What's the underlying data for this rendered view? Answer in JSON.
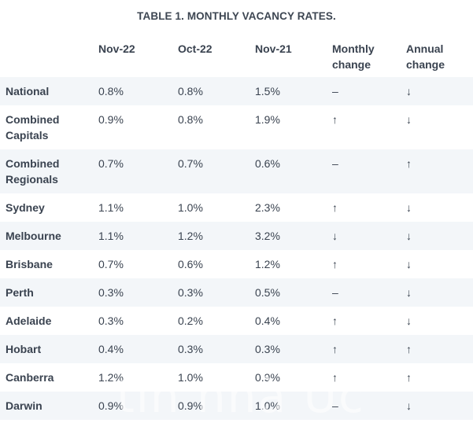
{
  "title": "TABLE 1. MONTHLY VACANCY RATES.",
  "headers": [
    "",
    "Nov-22",
    "Oct-22",
    "Nov-21",
    "Monthly change",
    "Annual change"
  ],
  "rows": [
    {
      "city": "National",
      "nov22": "0.8%",
      "oct22": "0.8%",
      "nov21": "1.5%",
      "monthly": "–",
      "annual": "↓"
    },
    {
      "city": "Combined Capitals",
      "nov22": "0.9%",
      "oct22": "0.8%",
      "nov21": "1.9%",
      "monthly": "↑",
      "annual": "↓"
    },
    {
      "city": "Combined Regionals",
      "nov22": "0.7%",
      "oct22": "0.7%",
      "nov21": "0.6%",
      "monthly": "–",
      "annual": "↑"
    },
    {
      "city": "Sydney",
      "nov22": "1.1%",
      "oct22": "1.0%",
      "nov21": "2.3%",
      "monthly": "↑",
      "annual": "↓"
    },
    {
      "city": "Melbourne",
      "nov22": "1.1%",
      "oct22": "1.2%",
      "nov21": "3.2%",
      "monthly": "↓",
      "annual": "↓"
    },
    {
      "city": "Brisbane",
      "nov22": "0.7%",
      "oct22": "0.6%",
      "nov21": "1.2%",
      "monthly": "↑",
      "annual": "↓"
    },
    {
      "city": "Perth",
      "nov22": "0.3%",
      "oct22": "0.3%",
      "nov21": "0.5%",
      "monthly": "–",
      "annual": "↓"
    },
    {
      "city": "Adelaide",
      "nov22": "0.3%",
      "oct22": "0.2%",
      "nov21": "0.4%",
      "monthly": "↑",
      "annual": "↓"
    },
    {
      "city": "Hobart",
      "nov22": "0.4%",
      "oct22": "0.3%",
      "nov21": "0.3%",
      "monthly": "↑",
      "annual": "↑"
    },
    {
      "city": "Canberra",
      "nov22": "1.2%",
      "oct22": "1.0%",
      "nov21": "0.9%",
      "monthly": "↑",
      "annual": "↑"
    },
    {
      "city": "Darwin",
      "nov22": "0.9%",
      "oct22": "0.9%",
      "nov21": "1.0%",
      "monthly": "–",
      "annual": "↓"
    }
  ],
  "watermark": "tin nhà Úc"
}
